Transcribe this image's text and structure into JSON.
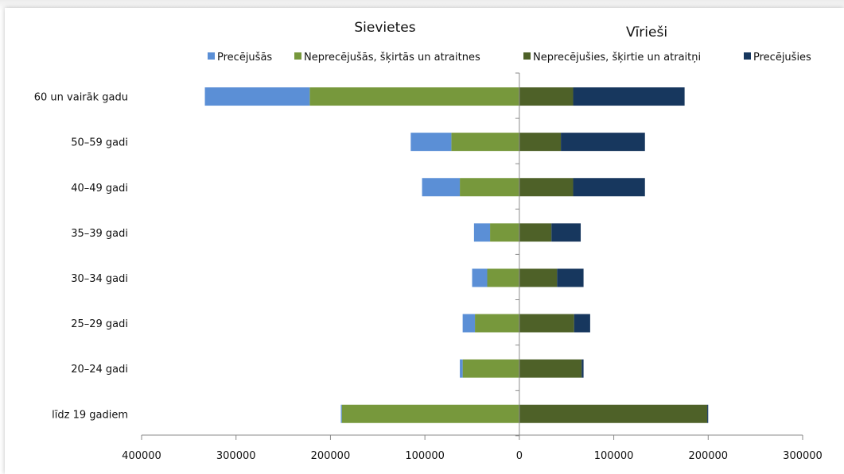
{
  "chart_data": {
    "type": "bar",
    "orientation": "horizontal-diverging",
    "title_left": "Sievietes",
    "title_right": "Vīrieši",
    "categories": [
      "60 un vairāk gadu",
      "50–59 gadi",
      "40–49 gadi",
      "35–39 gadi",
      "30–34 gadi",
      "25–29 gadi",
      "20–24 gadi",
      "līdz 19 gadiem"
    ],
    "series": [
      {
        "name": "Precējušās",
        "side": "left",
        "color": "#5b8fd6",
        "values": [
          111000,
          43000,
          40000,
          17000,
          16000,
          13000,
          3000,
          1000
        ]
      },
      {
        "name": "Neprecējušās, šķirtās un atraitnes",
        "side": "left",
        "color": "#77983c",
        "values": [
          222000,
          72000,
          63000,
          31000,
          34000,
          47000,
          60000,
          188000
        ]
      },
      {
        "name": "Neprecējušies, šķirtie un atraitņi",
        "side": "right",
        "color": "#4e6128",
        "values": [
          57000,
          44000,
          57000,
          34000,
          40000,
          58000,
          66000,
          199000
        ]
      },
      {
        "name": "Precējušies",
        "side": "right",
        "color": "#17375e",
        "values": [
          118000,
          89000,
          76000,
          31000,
          28000,
          17000,
          2000,
          1000
        ]
      }
    ],
    "legend_order": [
      "Precējušās",
      "Neprecējušās, šķirtās un atraitnes",
      "Neprecējušies, šķirtie un atraitņi",
      "Precējušies"
    ],
    "xaxis": {
      "min": -400000,
      "max": 300000,
      "ticks": [
        -400000,
        -300000,
        -200000,
        -100000,
        0,
        100000,
        200000,
        300000
      ],
      "tick_labels": [
        "400000",
        "300000",
        "200000",
        "100000",
        "0",
        "100000",
        "200000",
        "300000"
      ]
    },
    "grid": false,
    "legend_position": "top"
  }
}
